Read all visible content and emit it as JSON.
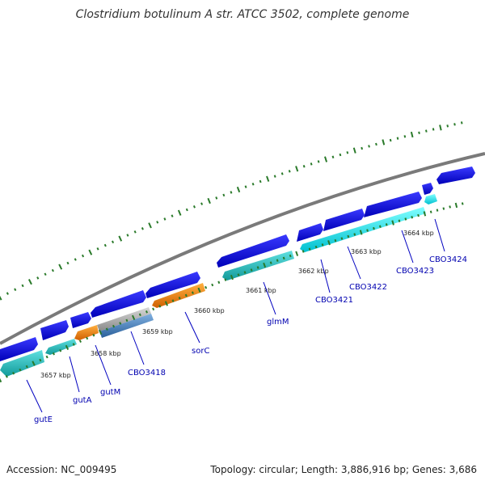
{
  "title": "Clostridium botulinum A str. ATCC 3502, complete genome",
  "footer": {
    "accession": "Accession: NC_009495",
    "summary": "Topology: circular; Length: 3,886,916 bp; Genes: 3,686"
  },
  "scale_labels": [
    "3657 kbp",
    "3658 kbp",
    "3659 kbp",
    "3660 kbp",
    "3661 kbp",
    "3662 kbp",
    "3663 kbp",
    "3664 kbp"
  ],
  "gene_labels": [
    "gutE",
    "gutA",
    "gutM",
    "CBO3418",
    "sorC",
    "glmM",
    "CBO3421",
    "CBO3422",
    "CBO3423",
    "CBO3424"
  ],
  "colors": {
    "backbone": "#888888",
    "forward_cds": "#1010e0",
    "reverse_cds": "#20c0c0",
    "reverse_cds_bright": "#00e8f0",
    "orange_cds": "#f08010",
    "grey_cds": "#a8a8a8",
    "steel_cds": "#4a86c0",
    "ticks": "#2a7a2a",
    "label_line": "#0000c0"
  }
}
